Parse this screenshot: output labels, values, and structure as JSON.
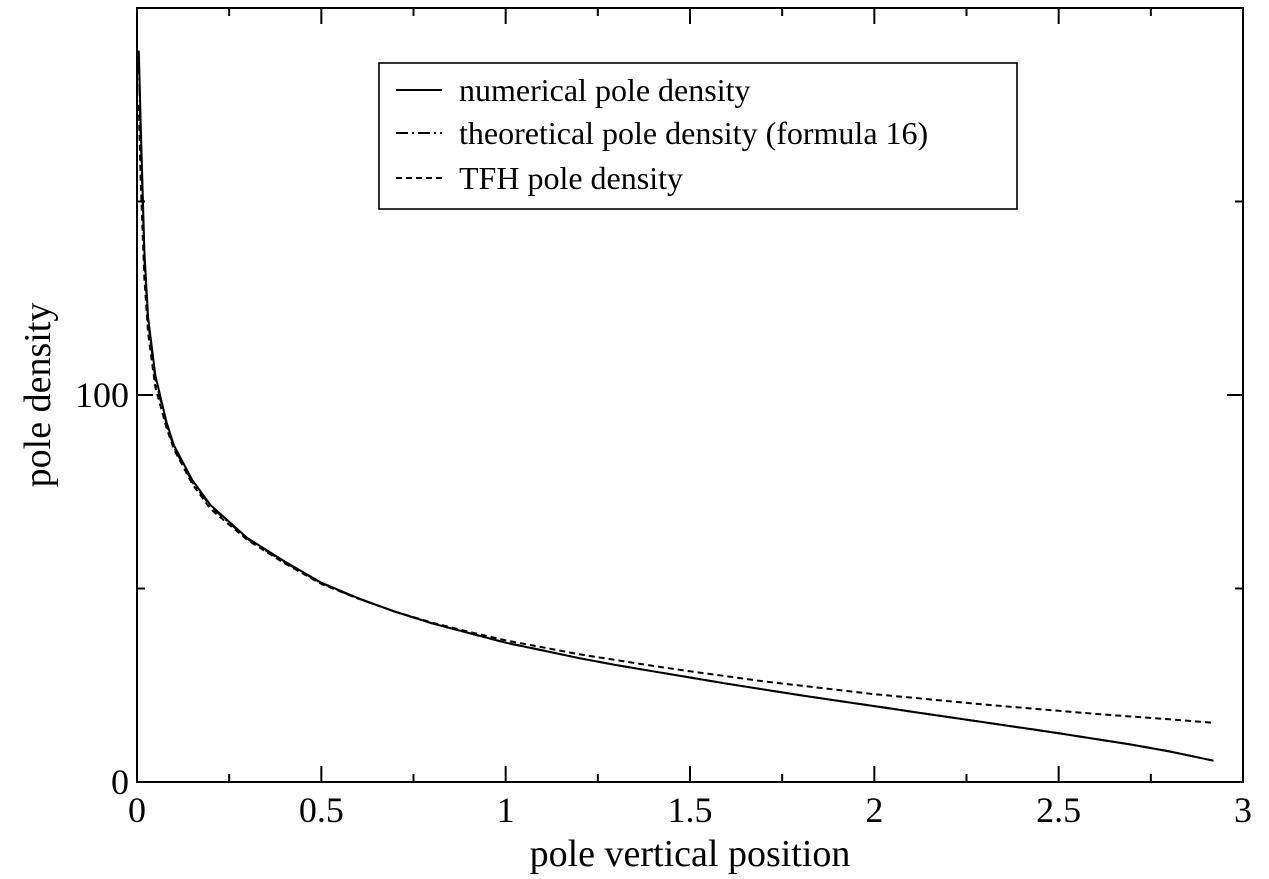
{
  "chart_data": {
    "type": "line",
    "title": "",
    "xlabel": "pole vertical position",
    "ylabel": "pole density",
    "xlim": [
      0,
      3
    ],
    "ylim": [
      0,
      200
    ],
    "x_ticks": [
      0,
      0.5,
      1,
      1.5,
      2,
      2.5,
      3
    ],
    "x_tick_labels": [
      "0",
      "0.5",
      "1",
      "1.5",
      "2",
      "2.5",
      "3"
    ],
    "x_minor_ticks": [
      0.25,
      0.75,
      1.25,
      1.75,
      2.25,
      2.75
    ],
    "y_ticks": [
      0,
      100
    ],
    "y_tick_labels": [
      "0",
      "100"
    ],
    "y_minor_ticks": [
      50,
      150
    ],
    "grid": false,
    "legend_position": "top-center",
    "series": [
      {
        "name": "numerical pole density",
        "style": "solid",
        "x": [
          0.005,
          0.01,
          0.02,
          0.03,
          0.05,
          0.08,
          0.1,
          0.15,
          0.2,
          0.3,
          0.4,
          0.5,
          0.6,
          0.7,
          0.8,
          0.9,
          1.0,
          1.1,
          1.2,
          1.3,
          1.4,
          1.5,
          1.6,
          1.7,
          1.8,
          1.9,
          2.0,
          2.1,
          2.2,
          2.3,
          2.4,
          2.5,
          2.6,
          2.7,
          2.8,
          2.92
        ],
        "y": [
          189,
          170,
          137,
          120,
          105,
          93,
          87,
          78,
          71.5,
          63,
          57,
          51.5,
          47.5,
          44,
          41,
          38.5,
          36,
          34,
          32,
          30.2,
          28.6,
          27,
          25.4,
          23.9,
          22.4,
          21,
          19.6,
          18.2,
          16.8,
          15.4,
          14,
          12.6,
          11.1,
          9.6,
          7.9,
          5.5
        ]
      },
      {
        "name": "theoretical pole density (formula 16)",
        "style": "dash-dot",
        "x": [
          0.005,
          0.01,
          0.02,
          0.03,
          0.05,
          0.08,
          0.1,
          0.15,
          0.2,
          0.3,
          0.4,
          0.5,
          0.6,
          0.7,
          0.8,
          0.9,
          1.0,
          1.1,
          1.2,
          1.3,
          1.4,
          1.5,
          1.6,
          1.7,
          1.8,
          1.9,
          2.0,
          2.1,
          2.2,
          2.3,
          2.4,
          2.5,
          2.6,
          2.7,
          2.8,
          2.92
        ],
        "y": [
          186,
          167,
          135,
          119,
          104,
          92.5,
          86.5,
          77.5,
          71.2,
          62.8,
          56.8,
          51.4,
          47.4,
          44,
          41,
          38.5,
          36,
          34,
          32,
          30.2,
          28.6,
          27,
          25.4,
          23.9,
          22.4,
          21,
          19.6,
          18.2,
          16.8,
          15.4,
          14,
          12.6,
          11.1,
          9.6,
          7.9,
          5.5
        ]
      },
      {
        "name": "TFH pole density",
        "style": "dashed",
        "x": [
          0.005,
          0.01,
          0.02,
          0.03,
          0.05,
          0.08,
          0.1,
          0.15,
          0.2,
          0.3,
          0.4,
          0.5,
          0.6,
          0.7,
          0.8,
          0.9,
          1.0,
          1.1,
          1.2,
          1.3,
          1.4,
          1.5,
          1.6,
          1.7,
          1.8,
          1.9,
          2.0,
          2.1,
          2.2,
          2.3,
          2.4,
          2.5,
          2.6,
          2.7,
          2.8,
          2.92
        ],
        "y": [
          175,
          155,
          130,
          116,
          102,
          91.5,
          86,
          77,
          70.5,
          62.5,
          56.5,
          51.2,
          47.4,
          44,
          41.2,
          38.8,
          36.6,
          34.8,
          33,
          31.5,
          30,
          28.6,
          27.3,
          26,
          24.9,
          23.8,
          22.7,
          21.8,
          20.9,
          20,
          19.2,
          18.4,
          17.6,
          16.9,
          16.2,
          15.3
        ]
      }
    ]
  }
}
